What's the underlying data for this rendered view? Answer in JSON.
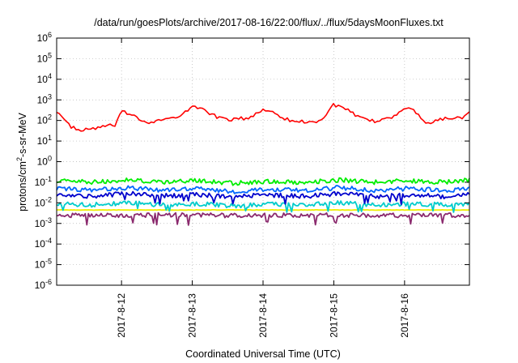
{
  "chart_data": {
    "type": "line",
    "title": "/data/run/goesPlots/archive/2017-08-16/22:00/flux/../flux/5daysMoonFluxes.txt",
    "xlabel": "Coordinated Universal Time (UTC)",
    "ylabel_parts": [
      "protons/cm",
      "2",
      "-s-sr-MeV"
    ],
    "y_scale": "log",
    "ylim": [
      1e-06,
      1000000.0
    ],
    "y_ticks": [
      {
        "value": 1e-06,
        "base": "10",
        "exp": "-6"
      },
      {
        "value": 1e-05,
        "base": "10",
        "exp": "-5"
      },
      {
        "value": 0.0001,
        "base": "10",
        "exp": "-4"
      },
      {
        "value": 0.001,
        "base": "10",
        "exp": "-3"
      },
      {
        "value": 0.01,
        "base": "10",
        "exp": "-2"
      },
      {
        "value": 0.1,
        "base": "10",
        "exp": "-1"
      },
      {
        "value": 1,
        "base": "10",
        "exp": "0"
      },
      {
        "value": 10,
        "base": "10",
        "exp": "1"
      },
      {
        "value": 100,
        "base": "10",
        "exp": "2"
      },
      {
        "value": 1000,
        "base": "10",
        "exp": "3"
      },
      {
        "value": 10000,
        "base": "10",
        "exp": "4"
      },
      {
        "value": 100000,
        "base": "10",
        "exp": "5"
      },
      {
        "value": 1000000,
        "base": "10",
        "exp": "6"
      }
    ],
    "x_range": [
      "2017-08-11 02:00",
      "2017-08-16 22:00"
    ],
    "x_ticks": [
      "2017-8-12",
      "2017-8-13",
      "2017-8-14",
      "2017-8-15",
      "2017-8-16"
    ],
    "grid": true,
    "legend": "none",
    "series": [
      {
        "color": "#ff0000",
        "x": [
          "2017-08-11 02:00",
          "2017-08-11 06:00",
          "2017-08-11 10:00",
          "2017-08-11 14:00",
          "2017-08-11 18:00",
          "2017-08-11 22:00",
          "2017-08-12 00:00",
          "2017-08-12 04:00",
          "2017-08-12 08:00",
          "2017-08-12 12:00",
          "2017-08-12 16:00",
          "2017-08-12 20:00",
          "2017-08-13 00:00",
          "2017-08-13 04:00",
          "2017-08-13 08:00",
          "2017-08-13 12:00",
          "2017-08-13 16:00",
          "2017-08-13 20:00",
          "2017-08-14 00:00",
          "2017-08-14 04:00",
          "2017-08-14 08:00",
          "2017-08-14 12:00",
          "2017-08-14 16:00",
          "2017-08-14 20:00",
          "2017-08-15 00:00",
          "2017-08-15 04:00",
          "2017-08-15 08:00",
          "2017-08-15 12:00",
          "2017-08-15 16:00",
          "2017-08-15 20:00",
          "2017-08-16 00:00",
          "2017-08-16 04:00",
          "2017-08-16 08:00",
          "2017-08-16 12:00",
          "2017-08-16 16:00",
          "2017-08-16 20:00",
          "2017-08-16 22:00"
        ],
        "y": [
          300,
          60,
          30,
          40,
          50,
          60,
          250,
          200,
          80,
          100,
          120,
          150,
          500,
          350,
          150,
          110,
          120,
          140,
          350,
          250,
          110,
          90,
          80,
          110,
          600,
          350,
          150,
          90,
          100,
          150,
          450,
          250,
          70,
          120,
          130,
          150,
          300
        ]
      },
      {
        "color": "#00ee00",
        "x": [
          "2017-08-11 02:00",
          "2017-08-11 14:00",
          "2017-08-12 02:00",
          "2017-08-12 14:00",
          "2017-08-13 02:00",
          "2017-08-13 14:00",
          "2017-08-14 02:00",
          "2017-08-14 14:00",
          "2017-08-15 02:00",
          "2017-08-15 14:00",
          "2017-08-16 02:00",
          "2017-08-16 14:00",
          "2017-08-16 22:00"
        ],
        "y": [
          0.12,
          0.1,
          0.13,
          0.1,
          0.12,
          0.09,
          0.11,
          0.1,
          0.13,
          0.1,
          0.12,
          0.1,
          0.13
        ]
      },
      {
        "color": "#0066ff",
        "x": [
          "2017-08-11 02:00",
          "2017-08-11 14:00",
          "2017-08-12 02:00",
          "2017-08-12 14:00",
          "2017-08-13 02:00",
          "2017-08-13 14:00",
          "2017-08-14 02:00",
          "2017-08-14 14:00",
          "2017-08-15 02:00",
          "2017-08-15 14:00",
          "2017-08-16 02:00",
          "2017-08-16 14:00",
          "2017-08-16 22:00"
        ],
        "y": [
          0.05,
          0.04,
          0.055,
          0.04,
          0.05,
          0.035,
          0.045,
          0.04,
          0.055,
          0.04,
          0.05,
          0.04,
          0.05
        ]
      },
      {
        "color": "#0000cc",
        "x": [
          "2017-08-11 02:00",
          "2017-08-11 14:00",
          "2017-08-12 02:00",
          "2017-08-12 14:00",
          "2017-08-13 02:00",
          "2017-08-13 14:00",
          "2017-08-14 02:00",
          "2017-08-14 14:00",
          "2017-08-15 02:00",
          "2017-08-15 14:00",
          "2017-08-16 02:00",
          "2017-08-16 14:00",
          "2017-08-16 22:00"
        ],
        "y": [
          0.025,
          0.02,
          0.03,
          0.022,
          0.025,
          0.02,
          0.024,
          0.021,
          0.028,
          0.02,
          0.025,
          0.02,
          0.026
        ]
      },
      {
        "color": "#00cccc",
        "x": [
          "2017-08-11 02:00",
          "2017-08-11 14:00",
          "2017-08-12 02:00",
          "2017-08-12 14:00",
          "2017-08-13 02:00",
          "2017-08-13 14:00",
          "2017-08-14 02:00",
          "2017-08-14 14:00",
          "2017-08-15 02:00",
          "2017-08-15 14:00",
          "2017-08-16 02:00",
          "2017-08-16 14:00",
          "2017-08-16 22:00"
        ],
        "y": [
          0.009,
          0.008,
          0.01,
          0.008,
          0.009,
          0.007,
          0.009,
          0.008,
          0.01,
          0.008,
          0.009,
          0.008,
          0.009
        ]
      },
      {
        "color": "#eeee00",
        "x": [
          "2017-08-11 02:00",
          "2017-08-11 14:00",
          "2017-08-12 02:00",
          "2017-08-12 14:00",
          "2017-08-13 02:00",
          "2017-08-13 14:00",
          "2017-08-14 02:00",
          "2017-08-14 14:00",
          "2017-08-15 02:00",
          "2017-08-15 14:00",
          "2017-08-16 02:00",
          "2017-08-16 14:00",
          "2017-08-16 22:00"
        ],
        "y": [
          0.0045,
          0.0045,
          0.0045,
          0.0045,
          0.0045,
          0.0045,
          0.0045,
          0.0045,
          0.0045,
          0.0045,
          0.0045,
          0.0045,
          0.0045
        ]
      },
      {
        "color": "#8b2a6e",
        "x": [
          "2017-08-11 02:00",
          "2017-08-11 14:00",
          "2017-08-12 02:00",
          "2017-08-12 14:00",
          "2017-08-13 02:00",
          "2017-08-13 14:00",
          "2017-08-14 02:00",
          "2017-08-14 14:00",
          "2017-08-15 02:00",
          "2017-08-15 14:00",
          "2017-08-16 02:00",
          "2017-08-16 14:00",
          "2017-08-16 22:00"
        ],
        "y": [
          0.0025,
          0.0025,
          0.0024,
          0.0026,
          0.0025,
          0.0024,
          0.0025,
          0.0025,
          0.0026,
          0.0024,
          0.0025,
          0.0025,
          0.0026
        ]
      }
    ]
  }
}
